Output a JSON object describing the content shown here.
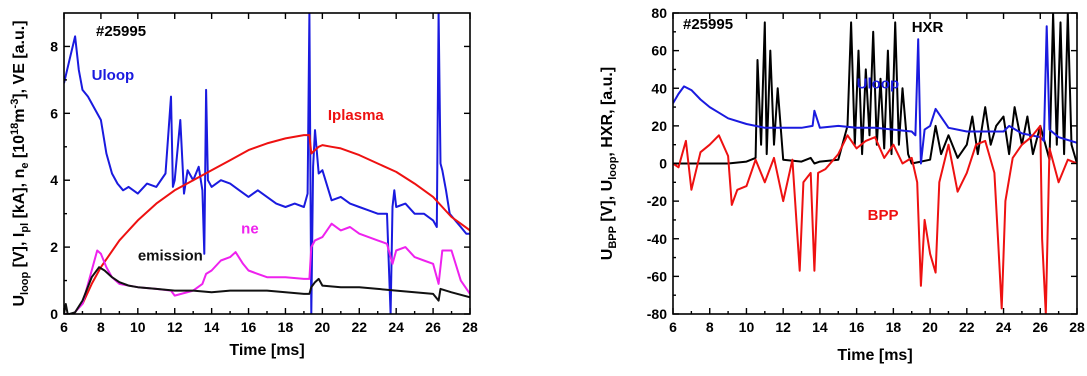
{
  "chart_data": [
    {
      "type": "line",
      "shot_label": "#25995",
      "xlabel": "Time [ms]",
      "ylabel_parts": [
        "U",
        "loop",
        " [V], I",
        "pl",
        " [kA], n",
        "e",
        " [10",
        "18",
        "m",
        "-3",
        "], VE [a.u.]"
      ],
      "xlim": [
        6,
        28
      ],
      "ylim": [
        0,
        9
      ],
      "x_ticks": [
        6,
        8,
        10,
        12,
        14,
        16,
        18,
        20,
        22,
        24,
        26,
        28
      ],
      "y_ticks": [
        0,
        2,
        4,
        6,
        8
      ],
      "grid": false,
      "series": [
        {
          "name": "Uloop",
          "color": "#1a1adf",
          "label_at": [
            7.5,
            7.0
          ],
          "x": [
            6.0,
            6.3,
            6.6,
            6.8,
            7.0,
            7.3,
            7.6,
            8.0,
            8.3,
            8.6,
            8.9,
            9.2,
            9.5,
            10.0,
            10.5,
            11.0,
            11.5,
            11.8,
            11.9,
            12.0,
            12.3,
            12.5,
            12.7,
            13.0,
            13.3,
            13.5,
            13.6,
            13.7,
            13.8,
            14.0,
            14.5,
            15.0,
            15.5,
            16.0,
            16.5,
            17.0,
            17.5,
            18.0,
            18.5,
            19.0,
            19.2,
            19.3,
            19.4,
            19.5,
            19.6,
            19.8,
            20.0,
            20.5,
            21.0,
            21.5,
            22.0,
            22.5,
            23.0,
            23.5,
            23.7,
            23.8,
            23.9,
            24.0,
            24.5,
            25.0,
            25.5,
            26.0,
            26.2,
            26.3,
            26.4,
            26.5,
            26.7,
            26.9,
            27.2,
            27.5,
            27.8,
            28.0
          ],
          "values": [
            6.9,
            7.6,
            8.3,
            7.3,
            6.7,
            6.5,
            6.2,
            5.8,
            4.8,
            4.2,
            3.9,
            3.7,
            3.8,
            3.6,
            3.9,
            3.8,
            4.2,
            6.5,
            3.8,
            4.0,
            5.8,
            3.6,
            4.3,
            4.0,
            4.4,
            3.7,
            1.8,
            6.7,
            4.0,
            3.8,
            4.0,
            3.9,
            3.7,
            3.5,
            3.7,
            3.5,
            3.3,
            3.2,
            3.3,
            3.2,
            3.6,
            9.0,
            0.0,
            4.4,
            5.5,
            4.2,
            4.3,
            3.4,
            3.5,
            3.3,
            3.2,
            3.1,
            3.0,
            3.0,
            0.0,
            3.2,
            3.7,
            3.2,
            3.3,
            3.0,
            3.0,
            2.8,
            2.6,
            9.0,
            4.5,
            4.3,
            3.7,
            3.0,
            2.8,
            2.6,
            2.4,
            2.4
          ]
        },
        {
          "name": "Iplasma",
          "color": "#ee1111",
          "label_at": [
            20.3,
            5.8
          ],
          "x": [
            7.0,
            7.5,
            8.0,
            9.0,
            10.0,
            11.0,
            12.0,
            13.0,
            14.0,
            15.0,
            16.0,
            17.0,
            18.0,
            19.0,
            19.3,
            19.4,
            19.8,
            20.0,
            20.5,
            21.0,
            22.0,
            23.0,
            24.0,
            25.0,
            26.0,
            26.5,
            27.0,
            27.5,
            28.0
          ],
          "values": [
            0.3,
            0.9,
            1.4,
            2.2,
            2.8,
            3.3,
            3.7,
            4.0,
            4.3,
            4.6,
            4.9,
            5.1,
            5.25,
            5.35,
            5.35,
            4.8,
            5.0,
            5.05,
            5.0,
            4.95,
            4.75,
            4.5,
            4.25,
            3.9,
            3.5,
            3.2,
            2.9,
            2.7,
            2.5
          ]
        },
        {
          "name": "ne",
          "color": "#ee22ee",
          "label_at": [
            15.6,
            2.4
          ],
          "x": [
            6.0,
            6.5,
            7.0,
            7.5,
            7.8,
            8.0,
            8.3,
            8.6,
            9.0,
            10.0,
            11.0,
            11.8,
            12.0,
            13.0,
            13.5,
            13.7,
            14.0,
            14.5,
            15.0,
            15.3,
            15.7,
            16.0,
            16.5,
            17.0,
            18.0,
            19.0,
            19.3,
            19.4,
            19.6,
            20.0,
            20.5,
            21.0,
            21.5,
            22.0,
            22.5,
            23.0,
            23.5,
            23.8,
            24.0,
            24.5,
            25.0,
            25.5,
            26.0,
            26.3,
            26.5,
            27.0,
            27.5,
            28.0
          ],
          "values": [
            0.0,
            0.0,
            0.3,
            1.3,
            1.9,
            1.8,
            1.4,
            1.1,
            0.9,
            0.8,
            0.75,
            0.7,
            0.55,
            0.7,
            0.9,
            1.2,
            1.3,
            1.6,
            1.7,
            1.85,
            1.5,
            1.3,
            1.2,
            1.1,
            1.1,
            1.05,
            1.05,
            2.0,
            2.2,
            2.3,
            2.7,
            2.5,
            2.6,
            2.4,
            2.3,
            2.2,
            2.1,
            1.5,
            1.9,
            2.0,
            1.7,
            1.6,
            1.5,
            0.9,
            1.9,
            1.9,
            1.0,
            0.6
          ]
        },
        {
          "name": "emission",
          "color": "#111111",
          "label_at": [
            10.0,
            1.6
          ],
          "x": [
            6.0,
            6.1,
            6.2,
            6.3,
            6.6,
            7.0,
            7.5,
            7.9,
            8.2,
            8.6,
            9.0,
            9.5,
            10.0,
            11.0,
            12.0,
            13.0,
            14.0,
            15.0,
            16.0,
            17.0,
            18.0,
            19.0,
            19.3,
            19.4,
            19.6,
            19.8,
            20.0,
            21.0,
            22.0,
            23.0,
            24.0,
            25.0,
            26.0,
            26.3,
            26.4,
            27.0,
            28.0
          ],
          "values": [
            0.0,
            0.3,
            0.0,
            0.0,
            0.05,
            0.4,
            1.1,
            1.4,
            1.3,
            1.1,
            0.95,
            0.85,
            0.8,
            0.75,
            0.7,
            0.7,
            0.65,
            0.7,
            0.7,
            0.7,
            0.65,
            0.6,
            0.6,
            0.8,
            0.95,
            1.05,
            0.85,
            0.8,
            0.8,
            0.75,
            0.7,
            0.65,
            0.6,
            0.4,
            0.75,
            0.65,
            0.5
          ]
        }
      ]
    },
    {
      "type": "line",
      "shot_label": "#25995",
      "xlabel": "Time [ms]",
      "ylabel_parts": [
        "U",
        "BPP",
        " [V], U",
        "loop",
        ", HXR, [a.u.]"
      ],
      "xlim": [
        6,
        28
      ],
      "ylim": [
        -80,
        80
      ],
      "x_ticks": [
        6,
        8,
        10,
        12,
        14,
        16,
        18,
        20,
        22,
        24,
        26,
        28
      ],
      "y_ticks": [
        -80,
        -60,
        -40,
        -20,
        0,
        20,
        40,
        60,
        80
      ],
      "grid": false,
      "series": [
        {
          "name": "HXR",
          "color": "#000000",
          "label_at": [
            19.0,
            70.0
          ],
          "x": [
            6.0,
            9.0,
            10.0,
            10.5,
            10.6,
            10.8,
            11.0,
            11.1,
            11.3,
            11.5,
            11.7,
            12.0,
            13.0,
            13.5,
            13.7,
            14.0,
            15.0,
            15.5,
            15.7,
            15.9,
            16.1,
            16.3,
            16.5,
            16.7,
            16.9,
            17.1,
            17.3,
            17.5,
            17.7,
            17.9,
            18.1,
            18.3,
            18.5,
            18.8,
            19.0,
            19.5,
            20.0,
            20.3,
            20.6,
            21.0,
            21.5,
            22.0,
            22.3,
            22.6,
            23.0,
            23.3,
            23.6,
            24.0,
            24.3,
            24.6,
            25.0,
            25.3,
            25.6,
            26.0,
            26.5,
            26.7,
            26.9,
            27.1,
            27.3,
            27.5,
            27.7,
            28.0
          ],
          "values": [
            0,
            0,
            1,
            3,
            55,
            10,
            75,
            5,
            60,
            10,
            40,
            2,
            1,
            3,
            0,
            1,
            2,
            20,
            75,
            10,
            60,
            5,
            50,
            15,
            70,
            10,
            45,
            8,
            60,
            5,
            75,
            10,
            40,
            5,
            0,
            1,
            2,
            20,
            5,
            15,
            3,
            10,
            25,
            5,
            30,
            10,
            20,
            25,
            5,
            30,
            10,
            25,
            5,
            20,
            2,
            80,
            10,
            75,
            5,
            80,
            10,
            0
          ]
        },
        {
          "name": "Uloop",
          "color": "#1a1adf",
          "label_at": [
            16.0,
            40.0
          ],
          "x": [
            6.0,
            6.3,
            6.6,
            7.0,
            7.5,
            8.0,
            8.5,
            9.0,
            10.0,
            11.0,
            12.0,
            13.0,
            13.6,
            13.7,
            14.0,
            15.0,
            16.0,
            17.0,
            18.0,
            19.0,
            19.2,
            19.35,
            19.5,
            19.7,
            20.0,
            20.3,
            21.0,
            22.0,
            23.0,
            24.0,
            24.3,
            25.0,
            26.0,
            26.2,
            26.35,
            26.5,
            27.0,
            28.0
          ],
          "values": [
            32,
            37,
            41,
            39,
            34,
            30,
            27,
            24,
            21,
            19,
            19,
            19,
            20,
            28,
            19,
            20,
            19,
            19,
            18,
            17,
            15,
            66,
            0,
            18,
            20,
            29,
            19,
            17,
            17,
            17,
            20,
            16,
            14,
            12,
            73,
            18,
            14,
            11
          ]
        },
        {
          "name": "BPP",
          "color": "#ee1111",
          "label_at": [
            16.6,
            -30.0
          ],
          "x": [
            6.0,
            6.3,
            6.7,
            7.0,
            7.5,
            8.0,
            8.5,
            9.0,
            9.2,
            9.5,
            10.0,
            10.5,
            11.0,
            11.5,
            12.0,
            12.5,
            12.9,
            13.1,
            13.5,
            13.7,
            13.9,
            14.3,
            15.0,
            15.5,
            16.0,
            16.5,
            17.0,
            17.5,
            18.0,
            18.5,
            19.0,
            19.3,
            19.5,
            19.7,
            20.0,
            20.3,
            20.5,
            21.0,
            21.5,
            22.0,
            22.5,
            23.0,
            23.5,
            23.7,
            23.9,
            24.1,
            24.5,
            25.0,
            25.5,
            26.0,
            26.1,
            26.3,
            26.5,
            27.0,
            27.5,
            28.0
          ],
          "values": [
            0,
            -2,
            12,
            -14,
            6,
            10,
            15,
            4,
            -22,
            -14,
            -12,
            2,
            -10,
            3,
            -20,
            2,
            -57,
            -10,
            -5,
            -57,
            -5,
            -3,
            5,
            15,
            8,
            12,
            14,
            3,
            10,
            0,
            3,
            -10,
            -65,
            -30,
            -48,
            -58,
            -10,
            10,
            -15,
            -5,
            10,
            12,
            -5,
            -40,
            -77,
            -20,
            3,
            10,
            14,
            20,
            -40,
            -80,
            8,
            -10,
            2,
            0
          ]
        }
      ]
    }
  ]
}
